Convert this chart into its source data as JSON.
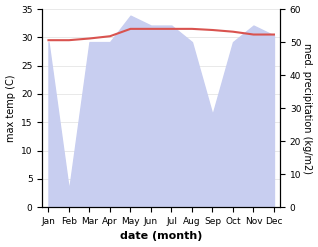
{
  "months": [
    "Jan",
    "Feb",
    "Mar",
    "Apr",
    "May",
    "Jun",
    "Jul",
    "Aug",
    "Sep",
    "Oct",
    "Nov",
    "Dec"
  ],
  "temp": [
    29.5,
    29.5,
    29.8,
    30.2,
    31.5,
    31.5,
    31.5,
    31.5,
    31.3,
    31.0,
    30.5,
    30.5
  ],
  "precipitation": [
    50,
    5,
    50,
    50,
    58,
    55,
    55,
    50,
    28,
    50,
    55,
    52
  ],
  "temp_color": "#d9534f",
  "precip_fill_color": "#c8cef0",
  "xlabel": "date (month)",
  "ylabel_left": "max temp (C)",
  "ylabel_right": "med. precipitation (kg/m2)",
  "ylim_left": [
    0,
    35
  ],
  "ylim_right": [
    0,
    60
  ],
  "yticks_left": [
    0,
    5,
    10,
    15,
    20,
    25,
    30,
    35
  ],
  "yticks_right": [
    0,
    10,
    20,
    30,
    40,
    50,
    60
  ]
}
